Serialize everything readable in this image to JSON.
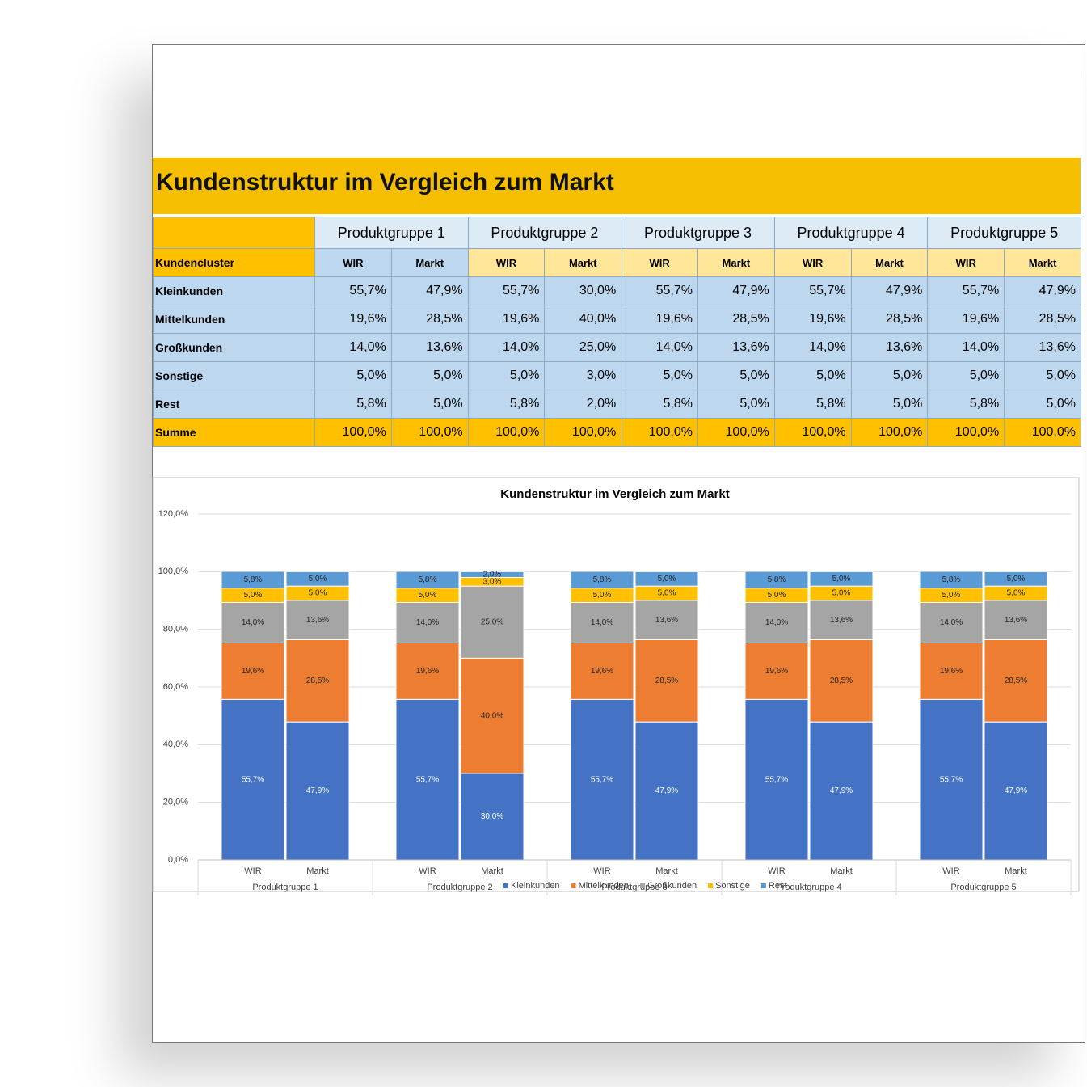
{
  "title": "Kundenstruktur im Vergleich zum Markt",
  "table": {
    "row_header": "Kundencluster",
    "groups": [
      "Produktgruppe 1",
      "Produktgruppe 2",
      "Produktgruppe 3",
      "Produktgruppe 4",
      "Produktgruppe 5"
    ],
    "subcolumns": [
      "WIR",
      "Markt"
    ],
    "rows": [
      {
        "label": "Kleinkunden",
        "cells": [
          "55,7%",
          "47,9%",
          "55,7%",
          "30,0%",
          "55,7%",
          "47,9%",
          "55,7%",
          "47,9%",
          "55,7%",
          "47,9%"
        ]
      },
      {
        "label": "Mittelkunden",
        "cells": [
          "19,6%",
          "28,5%",
          "19,6%",
          "40,0%",
          "19,6%",
          "28,5%",
          "19,6%",
          "28,5%",
          "19,6%",
          "28,5%"
        ]
      },
      {
        "label": "Großkunden",
        "cells": [
          "14,0%",
          "13,6%",
          "14,0%",
          "25,0%",
          "14,0%",
          "13,6%",
          "14,0%",
          "13,6%",
          "14,0%",
          "13,6%"
        ]
      },
      {
        "label": "Sonstige",
        "cells": [
          "5,0%",
          "5,0%",
          "5,0%",
          "3,0%",
          "5,0%",
          "5,0%",
          "5,0%",
          "5,0%",
          "5,0%",
          "5,0%"
        ]
      },
      {
        "label": "Rest",
        "cells": [
          "5,8%",
          "5,0%",
          "5,8%",
          "2,0%",
          "5,8%",
          "5,0%",
          "5,8%",
          "5,0%",
          "5,8%",
          "5,0%"
        ]
      }
    ],
    "sum": {
      "label": "Summe",
      "cells": [
        "100,0%",
        "100,0%",
        "100,0%",
        "100,0%",
        "100,0%",
        "100,0%",
        "100,0%",
        "100,0%",
        "100,0%",
        "100,0%"
      ]
    }
  },
  "chart_data": {
    "type": "stacked_bar",
    "title": "Kundenstruktur im Vergleich zum Markt",
    "categories": [
      "WIR",
      "Markt",
      "WIR",
      "Markt",
      "WIR",
      "Markt",
      "WIR",
      "Markt",
      "WIR",
      "Markt"
    ],
    "groups": [
      "Produktgruppe 1",
      "Produktgruppe 2",
      "Produktgruppe 3",
      "Produktgruppe 4",
      "Produktgruppe 5"
    ],
    "ylim": [
      0,
      120
    ],
    "yticks": [
      {
        "value": 0,
        "label": "0,0%"
      },
      {
        "value": 20,
        "label": "20,0%"
      },
      {
        "value": 40,
        "label": "40,0%"
      },
      {
        "value": 60,
        "label": "60,0%"
      },
      {
        "value": 80,
        "label": "80,0%"
      },
      {
        "value": 100,
        "label": "100,0%"
      },
      {
        "value": 120,
        "label": "120,0%"
      }
    ],
    "grid": true,
    "legend": "bottom",
    "series": [
      {
        "name": "Kleinkunden",
        "color": "#4472c4",
        "values": [
          55.7,
          47.9,
          55.7,
          30.0,
          55.7,
          47.9,
          55.7,
          47.9,
          55.7,
          47.9
        ],
        "value_labels": [
          "55,7%",
          "47,9%",
          "55,7%",
          "30,0%",
          "55,7%",
          "47,9%",
          "55,7%",
          "47,9%",
          "55,7%",
          "47,9%"
        ]
      },
      {
        "name": "Mittelkunden",
        "color": "#ed7d31",
        "values": [
          19.6,
          28.5,
          19.6,
          40.0,
          19.6,
          28.5,
          19.6,
          28.5,
          19.6,
          28.5
        ],
        "value_labels": [
          "19,6%",
          "28,5%",
          "19,6%",
          "40,0%",
          "19,6%",
          "28,5%",
          "19,6%",
          "28,5%",
          "19,6%",
          "28,5%"
        ]
      },
      {
        "name": "Großkunden",
        "color": "#a5a5a5",
        "values": [
          14.0,
          13.6,
          14.0,
          25.0,
          14.0,
          13.6,
          14.0,
          13.6,
          14.0,
          13.6
        ],
        "value_labels": [
          "14,0%",
          "13,6%",
          "14,0%",
          "25,0%",
          "14,0%",
          "13,6%",
          "14,0%",
          "13,6%",
          "14,0%",
          "13,6%"
        ]
      },
      {
        "name": "Sonstige",
        "color": "#ffc000",
        "values": [
          5.0,
          5.0,
          5.0,
          3.0,
          5.0,
          5.0,
          5.0,
          5.0,
          5.0,
          5.0
        ],
        "value_labels": [
          "5,0%",
          "5,0%",
          "5,0%",
          "3,0%",
          "5,0%",
          "5,0%",
          "5,0%",
          "5,0%",
          "5,0%",
          "5,0%"
        ]
      },
      {
        "name": "Rest",
        "color": "#5b9bd5",
        "values": [
          5.8,
          5.0,
          5.8,
          2.0,
          5.8,
          5.0,
          5.8,
          5.0,
          5.8,
          5.0
        ],
        "value_labels": [
          "5,8%",
          "5,0%",
          "5,8%",
          "2,0%",
          "5,8%",
          "5,0%",
          "5,8%",
          "5,0%",
          "5,8%",
          "5,0%"
        ]
      }
    ]
  }
}
